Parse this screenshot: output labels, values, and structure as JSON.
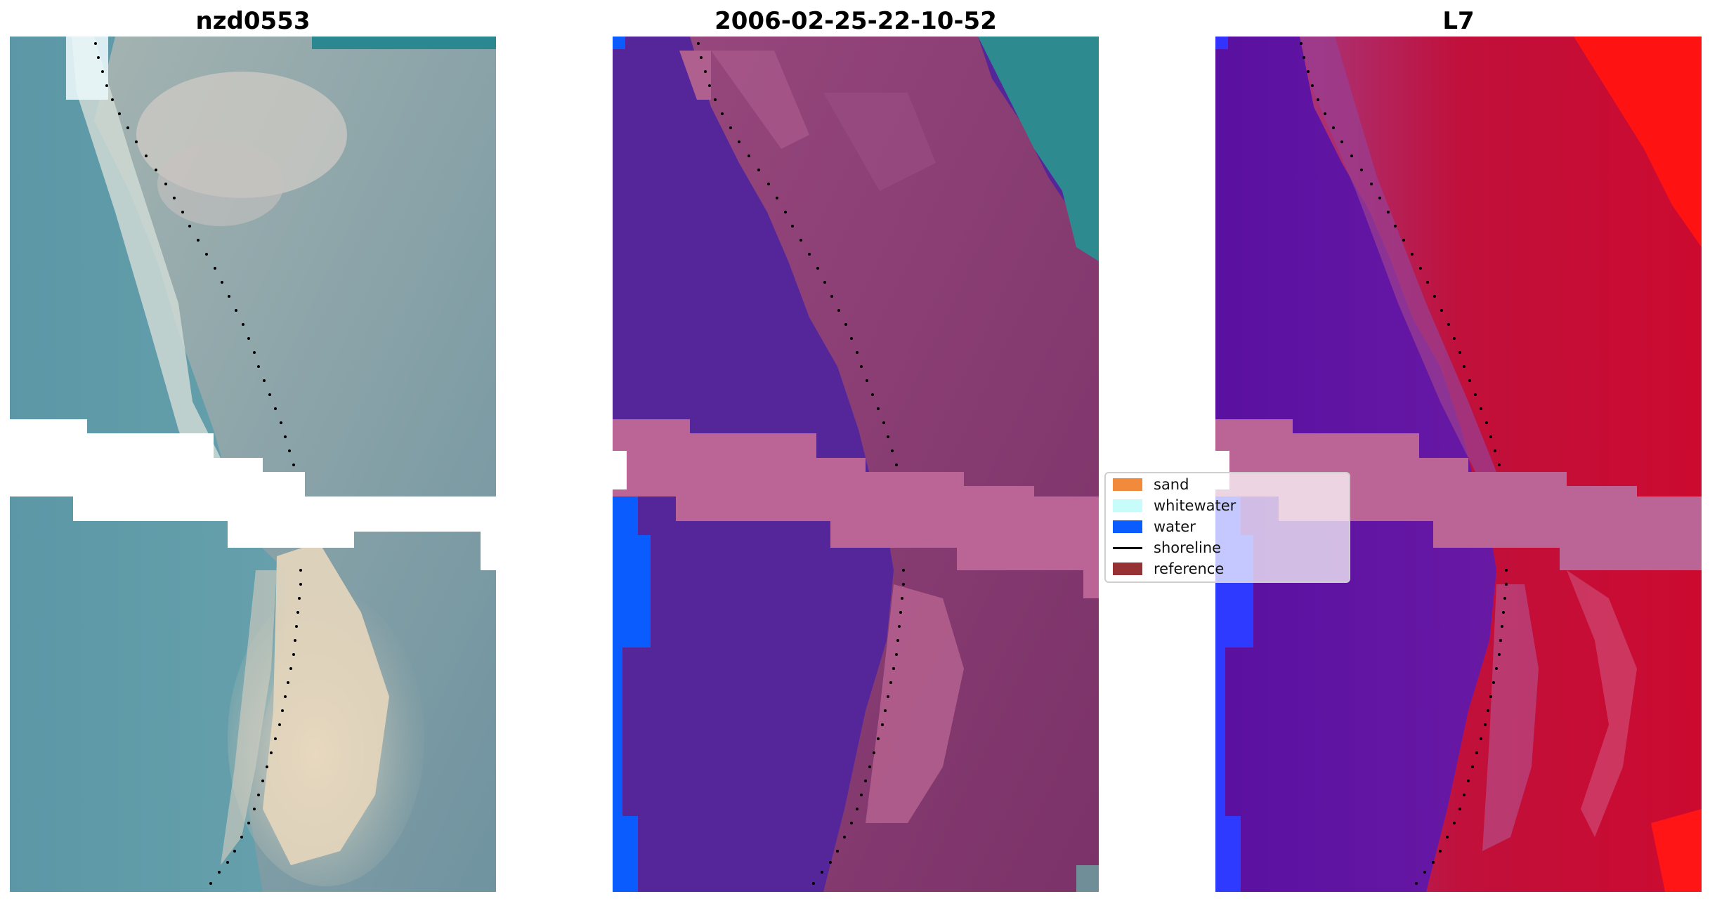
{
  "panels": [
    {
      "title": "nzd0553",
      "kind": "rgb"
    },
    {
      "title": "2006-02-25-22-10-52",
      "kind": "classified"
    },
    {
      "title": "L7",
      "kind": "mndwi"
    }
  ],
  "legend": {
    "items": [
      {
        "label": "sand",
        "color": "#f28a3c",
        "type": "patch"
      },
      {
        "label": "whitewater",
        "color": "#c8fcfa",
        "type": "patch"
      },
      {
        "label": "water",
        "color": "#0a5cff",
        "type": "patch"
      },
      {
        "label": "shoreline",
        "color": "#000000",
        "type": "line"
      },
      {
        "label": "reference",
        "color": "#963234",
        "type": "patch"
      }
    ]
  },
  "colors": {
    "rgb_water": "#5b97a6",
    "rgb_sand": "#d8d2c2",
    "rgb_land": "#8aa5a6",
    "class_water": "#55259a",
    "class_land": "#8a3f74",
    "class_band": "#bb6596",
    "class_blue": "#0a5cff",
    "mndwi_water": "#5e15a0",
    "mndwi_land": "#c0103b",
    "mndwi_red": "#ff1212",
    "nodata": "#ffffff",
    "shoreline": "#000000"
  }
}
